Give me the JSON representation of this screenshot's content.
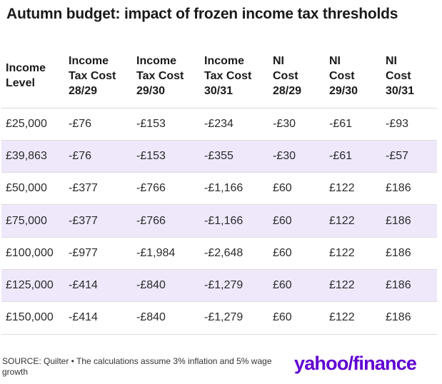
{
  "title": "Autumn budget: impact of frozen income tax thresholds",
  "chart_data": {
    "type": "table",
    "title": "Autumn budget: impact of frozen income tax thresholds",
    "columns": [
      [
        "Income",
        "Level"
      ],
      [
        "Income",
        "Tax Cost",
        "28/29"
      ],
      [
        "Income",
        "Tax Cost",
        "29/30"
      ],
      [
        "Income",
        "Tax Cost",
        "30/31"
      ],
      [
        "NI",
        "Cost",
        "28/29"
      ],
      [
        "NI",
        "Cost",
        "29/30"
      ],
      [
        "NI",
        "Cost",
        "30/31"
      ]
    ],
    "rows": [
      [
        "£25,000",
        "-£76",
        "-£153",
        "-£234",
        "-£30",
        "-£61",
        "-£93"
      ],
      [
        "£39,863",
        "-£76",
        "-£153",
        "-£355",
        "-£30",
        "-£61",
        "-£57"
      ],
      [
        "£50,000",
        "-£377",
        "-£766",
        "-£1,166",
        "£60",
        "£122",
        "£186"
      ],
      [
        "£75,000",
        "-£377",
        "-£766",
        "-£1,166",
        "£60",
        "£122",
        "£186"
      ],
      [
        "£100,000",
        "-£977",
        "-£1,984",
        "-£2,648",
        "£60",
        "£122",
        "£186"
      ],
      [
        "£125,000",
        "-£414",
        "-£840",
        "-£1,279",
        "£60",
        "£122",
        "£186"
      ],
      [
        "£150,000",
        "-£414",
        "-£840",
        "-£1,279",
        "£60",
        "£122",
        "£186"
      ]
    ]
  },
  "footer": {
    "source": "SOURCE: Quilter • The calculations assume 3% inflation and 5% wage growth",
    "logo_part1": "yahoo/",
    "logo_part2": "finance"
  },
  "colors": {
    "alt_row": "#efe8fb",
    "brand": "#6001d2"
  }
}
